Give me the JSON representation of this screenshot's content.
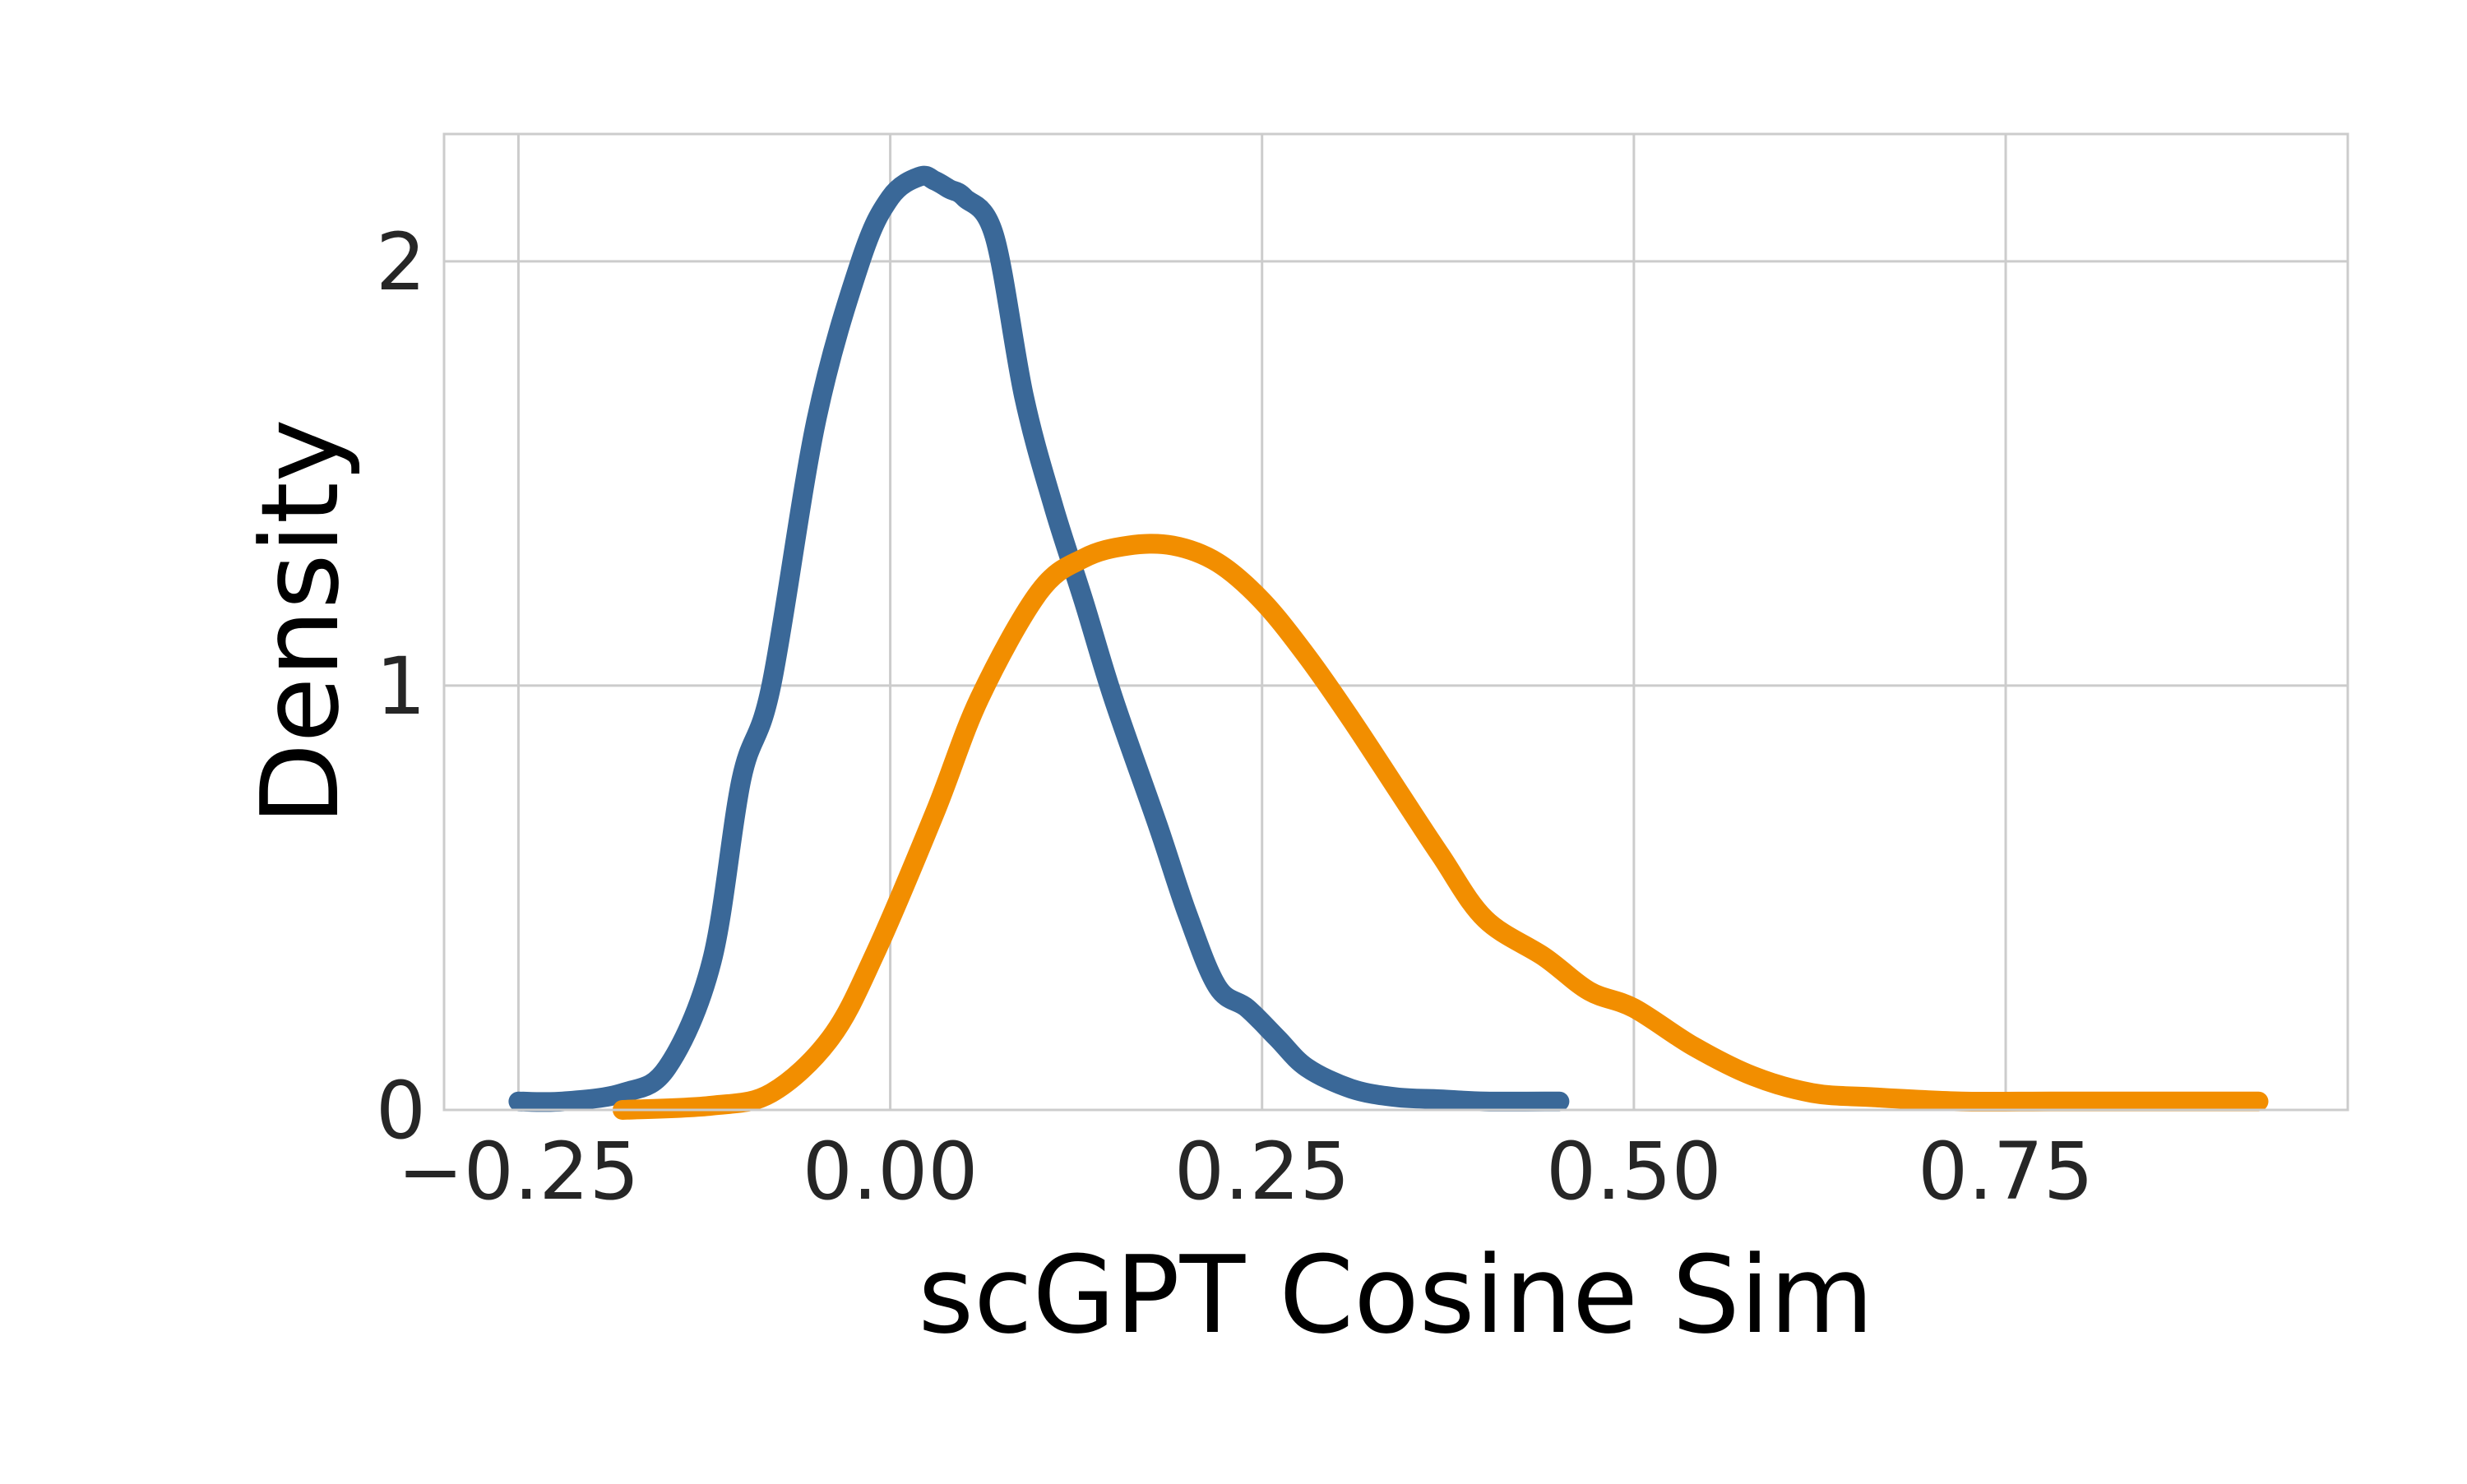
{
  "chart_data": {
    "type": "line",
    "title": "",
    "xlabel": "scGPT Cosine Sim",
    "ylabel": "Density",
    "xlim": [
      -0.3,
      0.98
    ],
    "ylim": [
      0,
      2.3
    ],
    "xticks": [
      -0.25,
      0.0,
      0.25,
      0.5,
      0.75
    ],
    "xtick_labels": [
      "−0.25",
      "0.00",
      "0.25",
      "0.50",
      "0.75"
    ],
    "yticks": [
      0,
      1,
      2
    ],
    "ytick_labels": [
      "0",
      "1",
      "2"
    ],
    "grid": true,
    "legend": "none",
    "series": [
      {
        "color": "#3a6898",
        "x": [
          -0.25,
          -0.22,
          -0.18,
          -0.15,
          -0.12,
          -0.1,
          -0.08,
          -0.05,
          -0.02,
          0.0,
          0.02,
          0.03,
          0.04,
          0.05,
          0.07,
          0.09,
          0.11,
          0.13,
          0.15,
          0.18,
          0.2,
          0.22,
          0.24,
          0.26,
          0.28,
          0.31,
          0.34,
          0.37,
          0.4,
          0.45
        ],
        "y": [
          0.02,
          0.02,
          0.04,
          0.1,
          0.35,
          0.78,
          1.0,
          1.62,
          2.0,
          2.15,
          2.2,
          2.19,
          2.17,
          2.15,
          2.06,
          1.68,
          1.42,
          1.2,
          0.97,
          0.67,
          0.46,
          0.29,
          0.24,
          0.17,
          0.1,
          0.05,
          0.03,
          0.025,
          0.02,
          0.02
        ]
      },
      {
        "color": "#f28e00",
        "x": [
          -0.18,
          -0.12,
          -0.08,
          -0.04,
          -0.01,
          0.03,
          0.06,
          0.1,
          0.13,
          0.16,
          0.19,
          0.22,
          0.25,
          0.28,
          0.31,
          0.34,
          0.37,
          0.4,
          0.44,
          0.47,
          0.5,
          0.54,
          0.58,
          0.62,
          0.66,
          0.72,
          0.78,
          0.85,
          0.92
        ],
        "y": [
          0.0,
          0.01,
          0.04,
          0.17,
          0.37,
          0.7,
          0.97,
          1.22,
          1.3,
          1.33,
          1.33,
          1.29,
          1.2,
          1.07,
          0.92,
          0.76,
          0.6,
          0.45,
          0.36,
          0.28,
          0.24,
          0.15,
          0.08,
          0.04,
          0.03,
          0.02,
          0.02,
          0.02,
          0.02
        ]
      }
    ]
  }
}
